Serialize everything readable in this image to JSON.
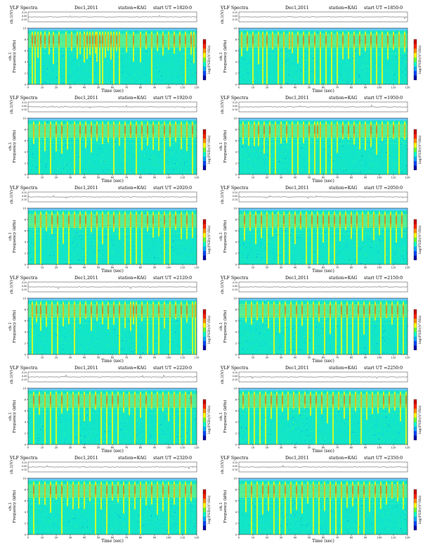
{
  "chart_data": [
    {
      "type": "heatmap",
      "title": "VLF Spectra",
      "date": "Dec1,2011",
      "station": "station=KAG",
      "start": "start UT =1820:0",
      "top_ylabel": "ch.1(V)",
      "ylabel": "ch.1\nFrequency (kHz)",
      "xlabel": "Time (sec)",
      "colorbar_label": "log(PSD)(V²/Hz)",
      "x_ticks": [
        0,
        10,
        20,
        30,
        40,
        50,
        60,
        70,
        80,
        90,
        100,
        110,
        120
      ],
      "y_ticks": [
        0,
        2,
        4,
        6,
        8,
        10
      ],
      "top_y_ticks": [
        "0.10",
        "0.00",
        "-0.10"
      ],
      "xlim": [
        0,
        120
      ],
      "ylim": [
        0,
        10
      ],
      "bursts": [
        3,
        5,
        7,
        9,
        12,
        15,
        18,
        22,
        27,
        31,
        35,
        37,
        40,
        42,
        44,
        46,
        48,
        49,
        51,
        53,
        55,
        57,
        59,
        61,
        63,
        65,
        70,
        75,
        80,
        84,
        88,
        92,
        96,
        100,
        104,
        108,
        112,
        116,
        118
      ]
    },
    {
      "type": "heatmap",
      "title": "VLF Spectra",
      "date": "Dec1,2011",
      "station": "station=KAG",
      "start": "start UT =1850:0",
      "top_ylabel": "ch.1(V)",
      "ylabel": "ch.1\nFrequency (kHz)",
      "xlabel": "Time (sec)",
      "colorbar_label": "log(PSD)(V²/Hz)",
      "x_ticks": [
        0,
        10,
        20,
        30,
        40,
        50,
        60,
        70,
        80,
        90,
        100,
        110,
        120
      ],
      "y_ticks": [
        0,
        2,
        4,
        6,
        8,
        10
      ],
      "top_y_ticks": [
        "0.10",
        "0.00",
        "-0.10"
      ],
      "xlim": [
        0,
        120
      ],
      "ylim": [
        0,
        10
      ],
      "bursts": [
        2,
        6,
        10,
        14,
        17,
        20,
        24,
        28,
        32,
        36,
        38,
        42,
        46,
        50,
        54,
        58,
        62,
        66,
        70,
        74,
        78,
        82,
        86,
        90,
        94,
        98,
        102,
        106,
        110,
        114,
        118
      ]
    },
    {
      "type": "heatmap",
      "title": "VLF Spectra",
      "date": "Dec1,2011",
      "station": "station=KAG",
      "start": "start UT =1920:0",
      "top_ylabel": "ch.1(V)",
      "ylabel": "ch.1\nFrequency (kHz)",
      "xlabel": "Time (sec)",
      "colorbar_label": "log(PSD)(V²/Hz)",
      "x_ticks": [
        0,
        10,
        20,
        30,
        40,
        50,
        60,
        70,
        80,
        90,
        100,
        110,
        120
      ],
      "y_ticks": [
        0,
        2,
        4,
        6,
        8,
        10
      ],
      "top_y_ticks": [
        "0.10",
        "0.00",
        "-0.10"
      ],
      "xlim": [
        0,
        120
      ],
      "ylim": [
        0,
        10
      ],
      "bursts": [
        4,
        8,
        12,
        16,
        20,
        24,
        28,
        33,
        37,
        41,
        45,
        49,
        53,
        57,
        61,
        65,
        69,
        73,
        77,
        81,
        85,
        89,
        93,
        97,
        101,
        105,
        109,
        113,
        117
      ]
    },
    {
      "type": "heatmap",
      "title": "VLF Spectra",
      "date": "Dec1,2011",
      "station": "station=KAG",
      "start": "start UT =1950:0",
      "top_ylabel": "ch.1(V)",
      "ylabel": "ch.1\nFrequency (kHz)",
      "xlabel": "Time (sec)",
      "colorbar_label": "log(PSD)(V²/Hz)",
      "x_ticks": [
        0,
        10,
        20,
        30,
        40,
        50,
        60,
        70,
        80,
        90,
        100,
        110,
        120
      ],
      "y_ticks": [
        0,
        2,
        4,
        6,
        8,
        10
      ],
      "top_y_ticks": [
        "0.10",
        "0.00",
        "-0.10"
      ],
      "xlim": [
        0,
        120
      ],
      "ylim": [
        0,
        10
      ],
      "bursts": [
        3,
        7,
        11,
        14,
        18,
        22,
        26,
        30,
        34,
        38,
        42,
        46,
        50,
        54,
        56,
        58,
        62,
        66,
        70,
        74,
        78,
        82,
        86,
        90,
        94,
        98,
        102,
        106,
        110,
        114,
        118
      ]
    },
    {
      "type": "heatmap",
      "title": "VLF Spectra",
      "date": "Dec1,2011",
      "station": "station=KAG",
      "start": "start UT =2020:0",
      "top_ylabel": "ch.1(V)",
      "ylabel": "ch.1\nFrequency (kHz)",
      "xlabel": "Time (sec)",
      "colorbar_label": "log(PSD)(V²/Hz)",
      "x_ticks": [
        0,
        10,
        20,
        30,
        40,
        50,
        60,
        70,
        80,
        90,
        100,
        110,
        120
      ],
      "y_ticks": [
        0,
        2,
        4,
        6,
        8,
        10
      ],
      "top_y_ticks": [
        "0.10",
        "0.00",
        "-0.10"
      ],
      "xlim": [
        0,
        120
      ],
      "ylim": [
        0,
        10
      ],
      "bursts": [
        5,
        9,
        13,
        17,
        21,
        25,
        29,
        33,
        37,
        41,
        45,
        49,
        53,
        57,
        61,
        65,
        69,
        73,
        77,
        81,
        85,
        89,
        93,
        97,
        101,
        105,
        109,
        113,
        117
      ]
    },
    {
      "type": "heatmap",
      "title": "VLF Spectra",
      "date": "Dec1,2011",
      "station": "station=KAG",
      "start": "start UT =2050:0",
      "top_ylabel": "ch.1(V)",
      "ylabel": "ch.1\nFrequency (kHz)",
      "xlabel": "Time (sec)",
      "colorbar_label": "log(PSD)(V²/Hz)",
      "x_ticks": [
        0,
        10,
        20,
        30,
        40,
        50,
        60,
        70,
        80,
        90,
        100,
        110,
        120
      ],
      "y_ticks": [
        0,
        2,
        4,
        6,
        8,
        10
      ],
      "top_y_ticks": [
        "0.10",
        "0.00",
        "-0.10"
      ],
      "xlim": [
        0,
        120
      ],
      "ylim": [
        0,
        10
      ],
      "bursts": [
        4,
        8,
        12,
        16,
        20,
        24,
        28,
        32,
        36,
        40,
        44,
        48,
        52,
        56,
        60,
        64,
        68,
        72,
        76,
        80,
        84,
        88,
        92,
        96,
        100,
        104,
        108,
        112,
        116
      ]
    },
    {
      "type": "heatmap",
      "title": "VLF Spectra",
      "date": "Dec1,2011",
      "station": "station=KAG",
      "start": "start UT =2120:0",
      "top_ylabel": "ch.1(V)",
      "ylabel": "ch.1\nFrequency (kHz)",
      "xlabel": "Time (sec)",
      "colorbar_label": "log(PSD)(V²/Hz)",
      "x_ticks": [
        0,
        10,
        20,
        30,
        40,
        50,
        60,
        70,
        80,
        90,
        100,
        110,
        120
      ],
      "y_ticks": [
        0,
        2,
        4,
        6,
        8,
        10
      ],
      "top_y_ticks": [
        "0.10",
        "0.00",
        "-0.10"
      ],
      "xlim": [
        0,
        120
      ],
      "ylim": [
        0,
        10
      ],
      "bursts": [
        3,
        6,
        9,
        13,
        17,
        21,
        25,
        29,
        33,
        37,
        41,
        45,
        49,
        53,
        57,
        61,
        65,
        69,
        73,
        75,
        77,
        81,
        85,
        89,
        93,
        97,
        101,
        105,
        109,
        113,
        117,
        119
      ]
    },
    {
      "type": "heatmap",
      "title": "VLF Spectra",
      "date": "Dec1,2011",
      "station": "station=KAG",
      "start": "start UT =2150:0",
      "top_ylabel": "ch.1(V)",
      "ylabel": "ch.1\nFrequency (kHz)",
      "xlabel": "Time (sec)",
      "colorbar_label": "log(PSD)(V²/Hz)",
      "x_ticks": [
        0,
        10,
        20,
        30,
        40,
        50,
        60,
        70,
        80,
        90,
        100,
        110,
        120
      ],
      "y_ticks": [
        0,
        2,
        4,
        6,
        8,
        10
      ],
      "top_y_ticks": [
        "0.10",
        "0.00",
        "-0.10"
      ],
      "xlim": [
        0,
        120
      ],
      "ylim": [
        0,
        10
      ],
      "bursts": [
        5,
        9,
        13,
        17,
        21,
        25,
        29,
        33,
        37,
        41,
        45,
        49,
        53,
        57,
        61,
        65,
        69,
        73,
        77,
        81,
        85,
        89,
        93,
        97,
        101,
        105,
        109,
        113,
        117
      ]
    },
    {
      "type": "heatmap",
      "title": "VLF Spectra",
      "date": "Dec1,2011",
      "station": "station=KAG",
      "start": "start UT =2220:0",
      "top_ylabel": "ch.1(V)",
      "ylabel": "ch.1\nFrequency (kHz)",
      "xlabel": "Time (sec)",
      "colorbar_label": "log(PSD)(V²/Hz)",
      "x_ticks": [
        0,
        10,
        20,
        30,
        40,
        50,
        60,
        70,
        80,
        90,
        100,
        110,
        120
      ],
      "y_ticks": [
        0,
        2,
        4,
        6,
        8,
        10
      ],
      "top_y_ticks": [
        "0.10",
        "0.00",
        "-0.10"
      ],
      "xlim": [
        0,
        120
      ],
      "ylim": [
        0,
        10
      ],
      "bursts": [
        4,
        8,
        12,
        16,
        20,
        24,
        28,
        32,
        36,
        40,
        44,
        48,
        52,
        56,
        60,
        64,
        68,
        72,
        76,
        80,
        84,
        88,
        92,
        96,
        100,
        104,
        108,
        112,
        116
      ]
    },
    {
      "type": "heatmap",
      "title": "VLF Spectra",
      "date": "Dec1,2011",
      "station": "station=KAG",
      "start": "start UT =2250:0",
      "top_ylabel": "ch.1(V)",
      "ylabel": "ch.1\nFrequency (kHz)",
      "xlabel": "Time (sec)",
      "colorbar_label": "log(PSD)(V²/Hz)",
      "x_ticks": [
        0,
        10,
        20,
        30,
        40,
        50,
        60,
        70,
        80,
        90,
        100,
        110,
        120
      ],
      "y_ticks": [
        0,
        2,
        4,
        6,
        8,
        10
      ],
      "top_y_ticks": [
        "0.10",
        "0.00",
        "-0.10"
      ],
      "xlim": [
        0,
        120
      ],
      "ylim": [
        0,
        10
      ],
      "bursts": [
        3,
        7,
        11,
        15,
        19,
        23,
        27,
        31,
        35,
        39,
        43,
        47,
        51,
        55,
        59,
        63,
        67,
        71,
        75,
        79,
        83,
        87,
        91,
        95,
        99,
        103,
        107,
        111,
        115,
        119
      ]
    },
    {
      "type": "heatmap",
      "title": "VLF Spectra",
      "date": "Dec1,2011",
      "station": "station=KAG",
      "start": "start UT =2320:0",
      "top_ylabel": "ch.1(V)",
      "ylabel": "ch.1\nFrequency (kHz)",
      "xlabel": "Time (sec)",
      "colorbar_label": "log(PSD)(V²/Hz)",
      "x_ticks": [
        0,
        10,
        20,
        30,
        40,
        50,
        60,
        70,
        80,
        90,
        100,
        110,
        120
      ],
      "y_ticks": [
        0,
        2,
        4,
        6,
        8,
        10
      ],
      "top_y_ticks": [
        "0.10",
        "0.00",
        "-0.10"
      ],
      "xlim": [
        0,
        120
      ],
      "ylim": [
        0,
        10
      ],
      "bursts": [
        4,
        8,
        12,
        16,
        20,
        24,
        28,
        32,
        36,
        40,
        44,
        48,
        52,
        56,
        60,
        64,
        68,
        72,
        76,
        80,
        84,
        88,
        92,
        96,
        100,
        104,
        108,
        112,
        116
      ]
    },
    {
      "type": "heatmap",
      "title": "VLF Spectra",
      "date": "Dec1,2011",
      "station": "station=KAG",
      "start": "start UT =2350:0",
      "top_ylabel": "ch.1(V)",
      "ylabel": "ch.1\nFrequency (kHz)",
      "xlabel": "Time (sec)",
      "colorbar_label": "log(PSD)(V²/Hz)",
      "x_ticks": [
        0,
        10,
        20,
        30,
        40,
        50,
        60,
        70,
        80,
        90,
        100,
        110,
        120
      ],
      "y_ticks": [
        0,
        2,
        4,
        6,
        8,
        10
      ],
      "top_y_ticks": [
        "0.10",
        "0.00",
        "-0.10"
      ],
      "xlim": [
        0,
        120
      ],
      "ylim": [
        0,
        10
      ],
      "bursts": [
        5,
        9,
        13,
        17,
        21,
        25,
        29,
        33,
        37,
        41,
        45,
        49,
        53,
        57,
        61,
        65,
        69,
        73,
        77,
        81,
        85,
        89,
        93,
        97,
        101,
        105,
        109,
        113,
        117
      ]
    }
  ],
  "colors": {
    "background": "#00ffaa",
    "noise_low": "#00ccff",
    "noise_mid": "#2ef2c0",
    "burst_yellow": "#ffff00",
    "burst_orange": "#ff8800",
    "burst_red": "#dd0000",
    "cutoff": "#66ccff"
  }
}
